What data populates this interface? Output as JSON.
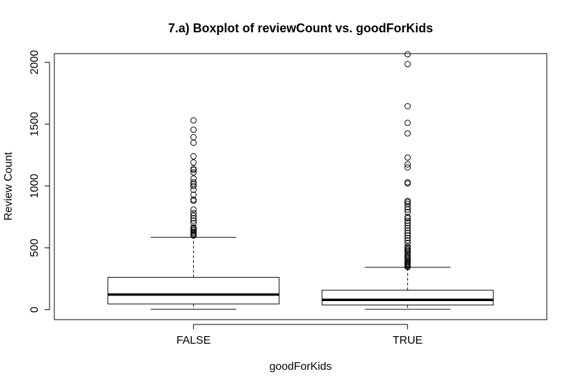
{
  "chart_data": {
    "type": "boxplot",
    "title": "7.a) Boxplot of reviewCount vs. goodForKids",
    "xlabel": "goodForKids",
    "ylabel": "Review Count",
    "ylim": [
      -80,
      2070
    ],
    "yticks": [
      0,
      500,
      1000,
      1500,
      2000
    ],
    "categories": [
      "FALSE",
      "TRUE"
    ],
    "grid": false,
    "box_color": "#000000",
    "boxes": [
      {
        "category": "FALSE",
        "whisker_low": 3,
        "q1": 47,
        "median": 123,
        "q3": 262,
        "whisker_high": 585,
        "outliers": [
          600,
          605,
          610,
          620,
          630,
          640,
          650,
          660,
          665,
          700,
          720,
          740,
          760,
          780,
          810,
          880,
          890,
          930,
          970,
          1000,
          1015,
          1030,
          1060,
          1110,
          1130,
          1140,
          1190,
          1240,
          1350,
          1395,
          1455,
          1530
        ]
      },
      {
        "category": "TRUE",
        "whisker_low": 3,
        "q1": 38,
        "median": 80,
        "q3": 158,
        "whisker_high": 343,
        "outliers": [
          345,
          350,
          358,
          365,
          372,
          380,
          390,
          400,
          410,
          420,
          430,
          440,
          455,
          470,
          480,
          490,
          500,
          510,
          540,
          560,
          580,
          600,
          620,
          640,
          660,
          680,
          700,
          720,
          740,
          750,
          790,
          810,
          830,
          855,
          870,
          880,
          1020,
          1030,
          1150,
          1175,
          1230,
          1425,
          1510,
          1645,
          1985,
          2065
        ]
      }
    ]
  }
}
